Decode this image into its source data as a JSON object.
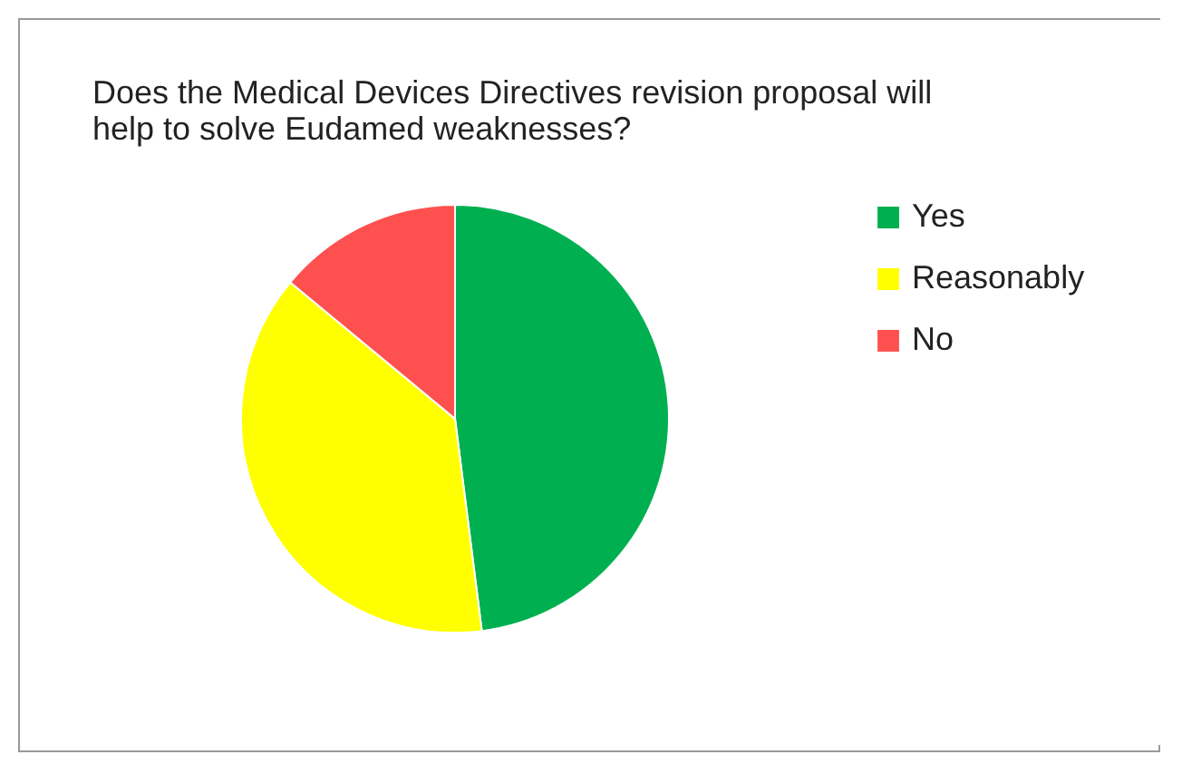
{
  "chart_data": {
    "type": "pie",
    "title": "Does the Medical Devices Directives revision proposal will help to solve Eudamed weaknesses?",
    "categories": [
      "Yes",
      "Reasonably",
      "No"
    ],
    "values": [
      48,
      38,
      14
    ],
    "colors": [
      "#00b050",
      "#ffff00",
      "#ff5050"
    ],
    "legend": "right"
  }
}
